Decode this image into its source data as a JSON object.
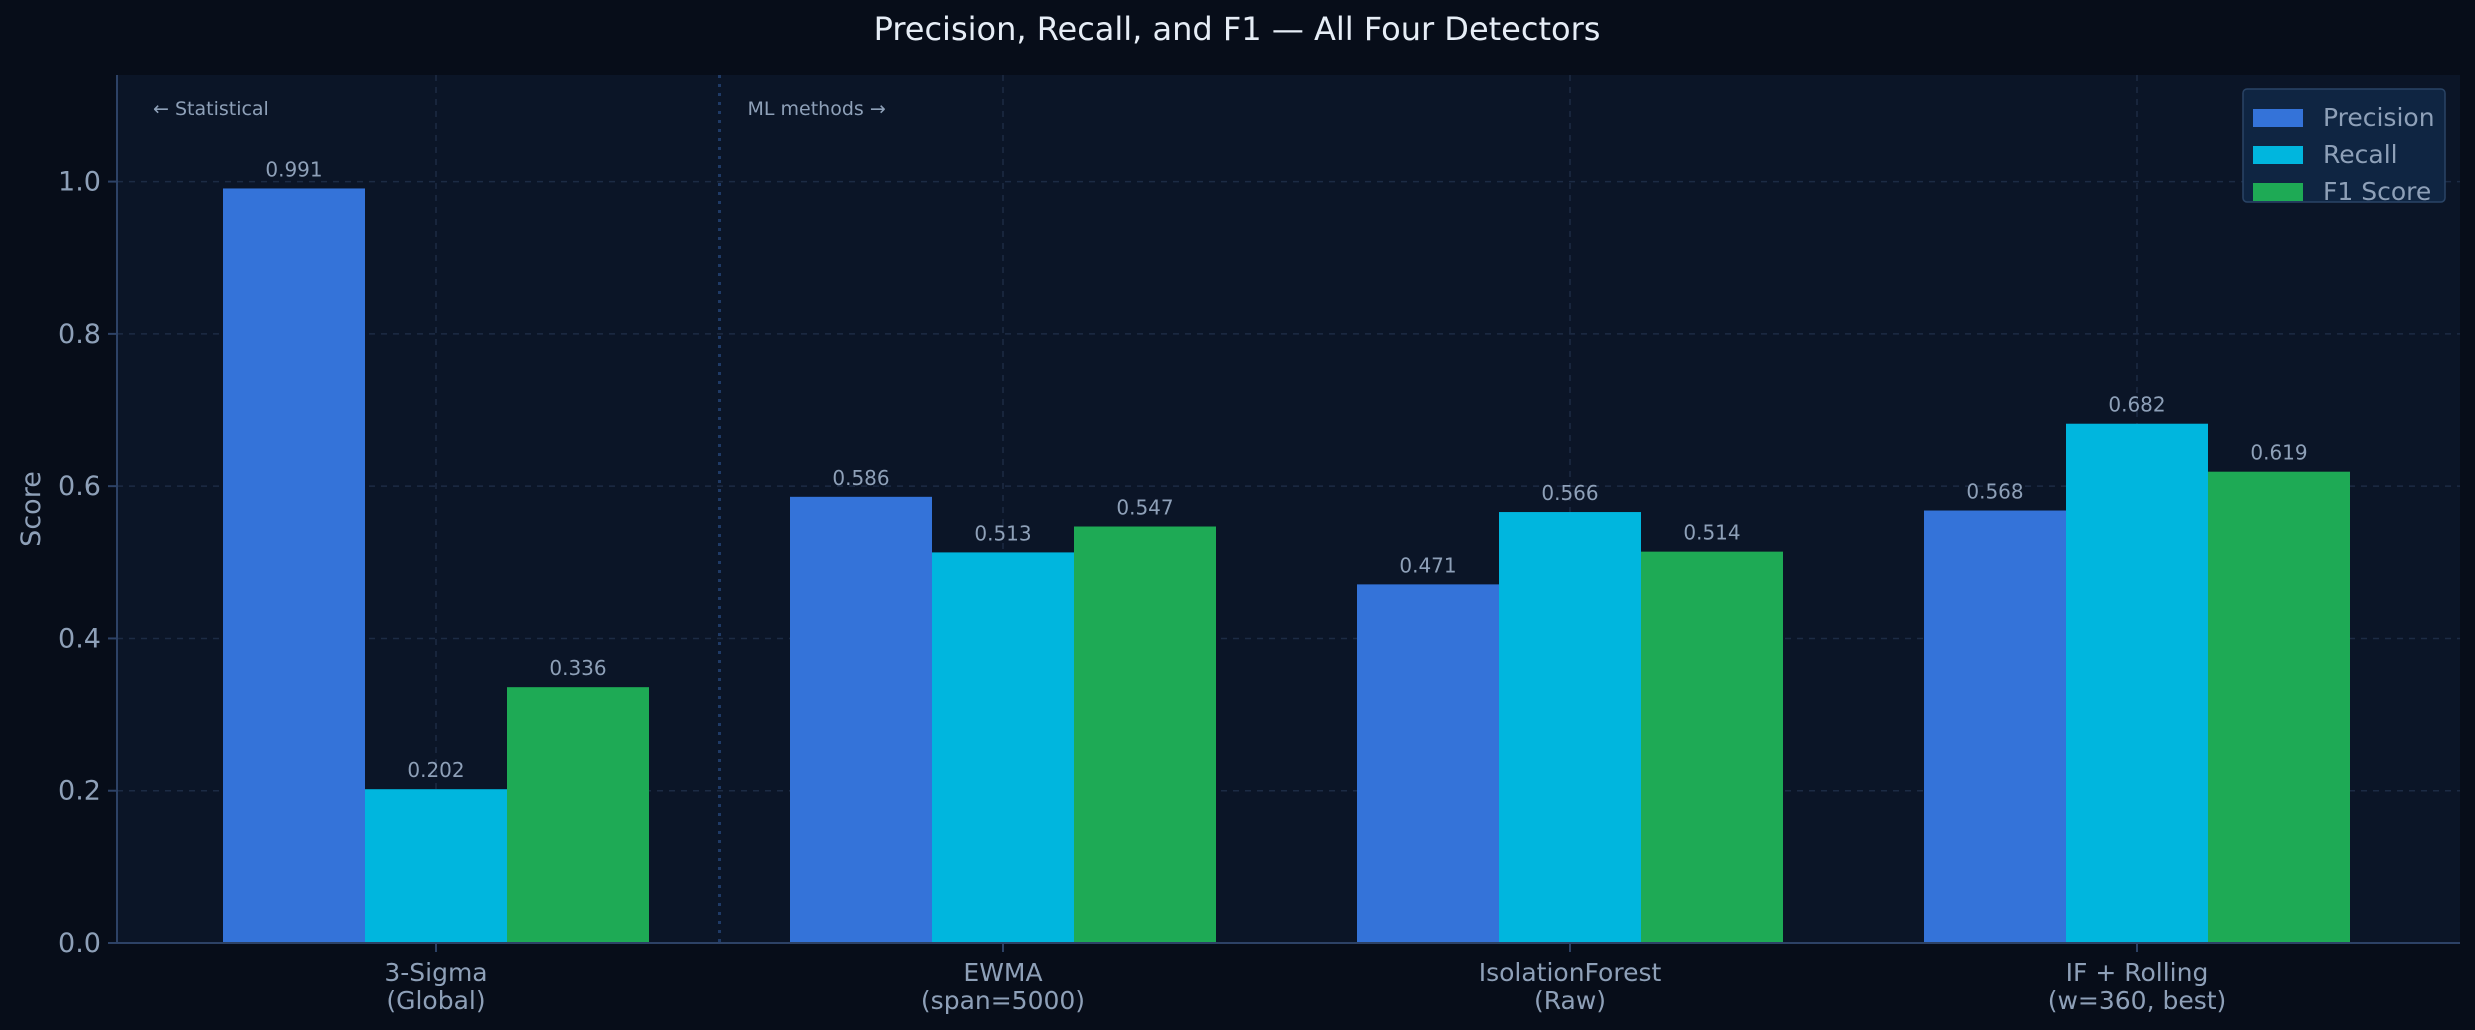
{
  "chart_data": {
    "type": "bar",
    "title": "Precision, Recall, and F1 — All Four Detectors",
    "xlabel": "",
    "ylabel": "Score",
    "ylim": [
      0,
      1.14
    ],
    "yticks": [
      "0.0",
      "0.2",
      "0.4",
      "0.6",
      "0.8",
      "1.0"
    ],
    "grid": true,
    "legend_position": "top-right",
    "categories": [
      [
        "3-Sigma",
        "(Global)"
      ],
      [
        "EWMA",
        "(span=5000)"
      ],
      [
        "IsolationForest",
        "(Raw)"
      ],
      [
        "IF + Rolling",
        "(w=360, best)"
      ]
    ],
    "series": [
      {
        "name": "Precision",
        "color": "#3473d9",
        "values": [
          0.991,
          0.586,
          0.471,
          0.568
        ]
      },
      {
        "name": "Recall",
        "color": "#00b6de",
        "values": [
          0.202,
          0.513,
          0.566,
          0.682
        ]
      },
      {
        "name": "F1 Score",
        "color": "#1eaa55",
        "values": [
          0.336,
          0.547,
          0.514,
          0.619
        ]
      }
    ],
    "annotations": {
      "left": "← Statistical",
      "right": "ML methods →"
    }
  },
  "colors": {
    "page_background": "#070d19",
    "plot_background": "#0b1527",
    "grid": "#1c2b44",
    "axis": "#2d4266",
    "text": "#8ea0b8",
    "title": "#e6edf6",
    "legend_background": "#0f2542",
    "legend_border": "#2a4466"
  }
}
